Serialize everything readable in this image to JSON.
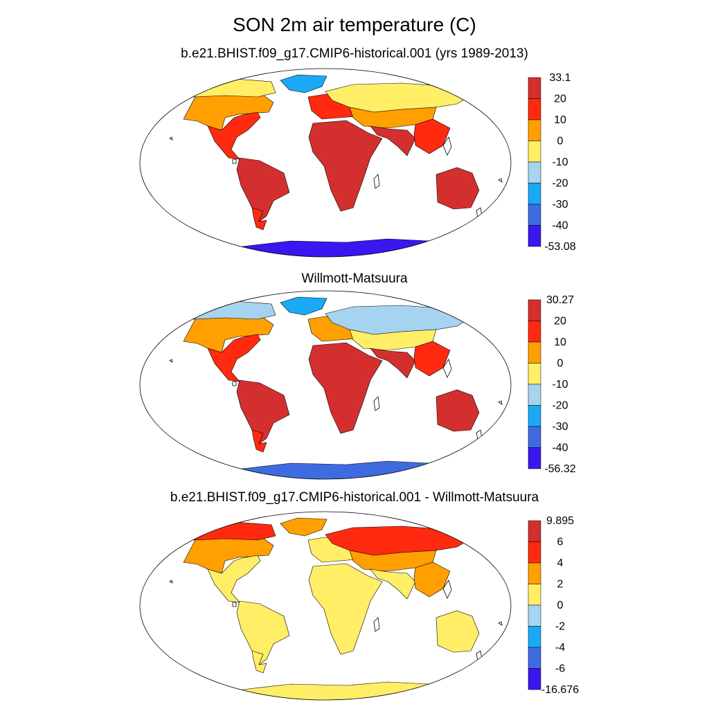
{
  "figure": {
    "title": "SON 2m air temperature (C)"
  },
  "colors": {
    "temp_palette": [
      "#d42f2f",
      "#ff2a10",
      "#ffa000",
      "#ffee66",
      "#a6d3ef",
      "#1ba9f5",
      "#3f6be0",
      "#3a16ef"
    ],
    "diff_palette": [
      "#d42f2f",
      "#ff2a10",
      "#ffa000",
      "#ffee66",
      "#a6d3ef",
      "#1ba9f5",
      "#3f6be0",
      "#3a16ef"
    ],
    "ocean": "#ffffff",
    "coastline": "#000000"
  },
  "panels": [
    {
      "subtitle": "b.e21.BHIST.f09_g17.CMIP6-historical.001 (yrs 1989-2013)",
      "colorbar": {
        "labels": [
          "33.1",
          "20",
          "10",
          "0",
          "-10",
          "-20",
          "-30",
          "-40",
          "-53.08"
        ]
      },
      "fills": {
        "north_america": "#ffa000",
        "north_america_south": "#ff2a10",
        "greenland": "#1ba9f5",
        "arctic_canada": "#ffee66",
        "south_america": "#d42f2f",
        "patagonia": "#ff2a10",
        "africa": "#d42f2f",
        "europe": "#ff2a10",
        "siberia": "#ffee66",
        "central_asia": "#ffa000",
        "south_asia": "#d42f2f",
        "east_asia": "#ff2a10",
        "australia": "#d42f2f",
        "antarctica": "#3a16ef"
      }
    },
    {
      "subtitle": "Willmott-Matsuura",
      "colorbar": {
        "labels": [
          "30.27",
          "20",
          "10",
          "0",
          "-10",
          "-20",
          "-30",
          "-40",
          "-56.32"
        ]
      },
      "fills": {
        "north_america": "#ffa000",
        "north_america_south": "#ff2a10",
        "greenland": "#1ba9f5",
        "arctic_canada": "#a6d3ef",
        "south_america": "#d42f2f",
        "patagonia": "#ff2a10",
        "africa": "#d42f2f",
        "europe": "#ffa000",
        "siberia": "#a6d3ef",
        "central_asia": "#ffee66",
        "south_asia": "#d42f2f",
        "east_asia": "#ff2a10",
        "australia": "#d42f2f",
        "antarctica": "#3f6be0"
      }
    },
    {
      "subtitle": "b.e21.BHIST.f09_g17.CMIP6-historical.001 - Willmott-Matsuura",
      "colorbar": {
        "labels": [
          "9.895",
          "6",
          "4",
          "2",
          "0",
          "-2",
          "-4",
          "-6",
          "-16.676"
        ]
      },
      "fills": {
        "north_america": "#ffa000",
        "north_america_south": "#ffee66",
        "greenland": "#ffa000",
        "arctic_canada": "#ff2a10",
        "south_america": "#ffee66",
        "patagonia": "#ffee66",
        "africa": "#ffee66",
        "europe": "#ffee66",
        "siberia": "#ff2a10",
        "central_asia": "#ffa000",
        "south_asia": "#ffee66",
        "east_asia": "#ffa000",
        "australia": "#ffee66",
        "antarctica": "#ffee66"
      }
    }
  ]
}
